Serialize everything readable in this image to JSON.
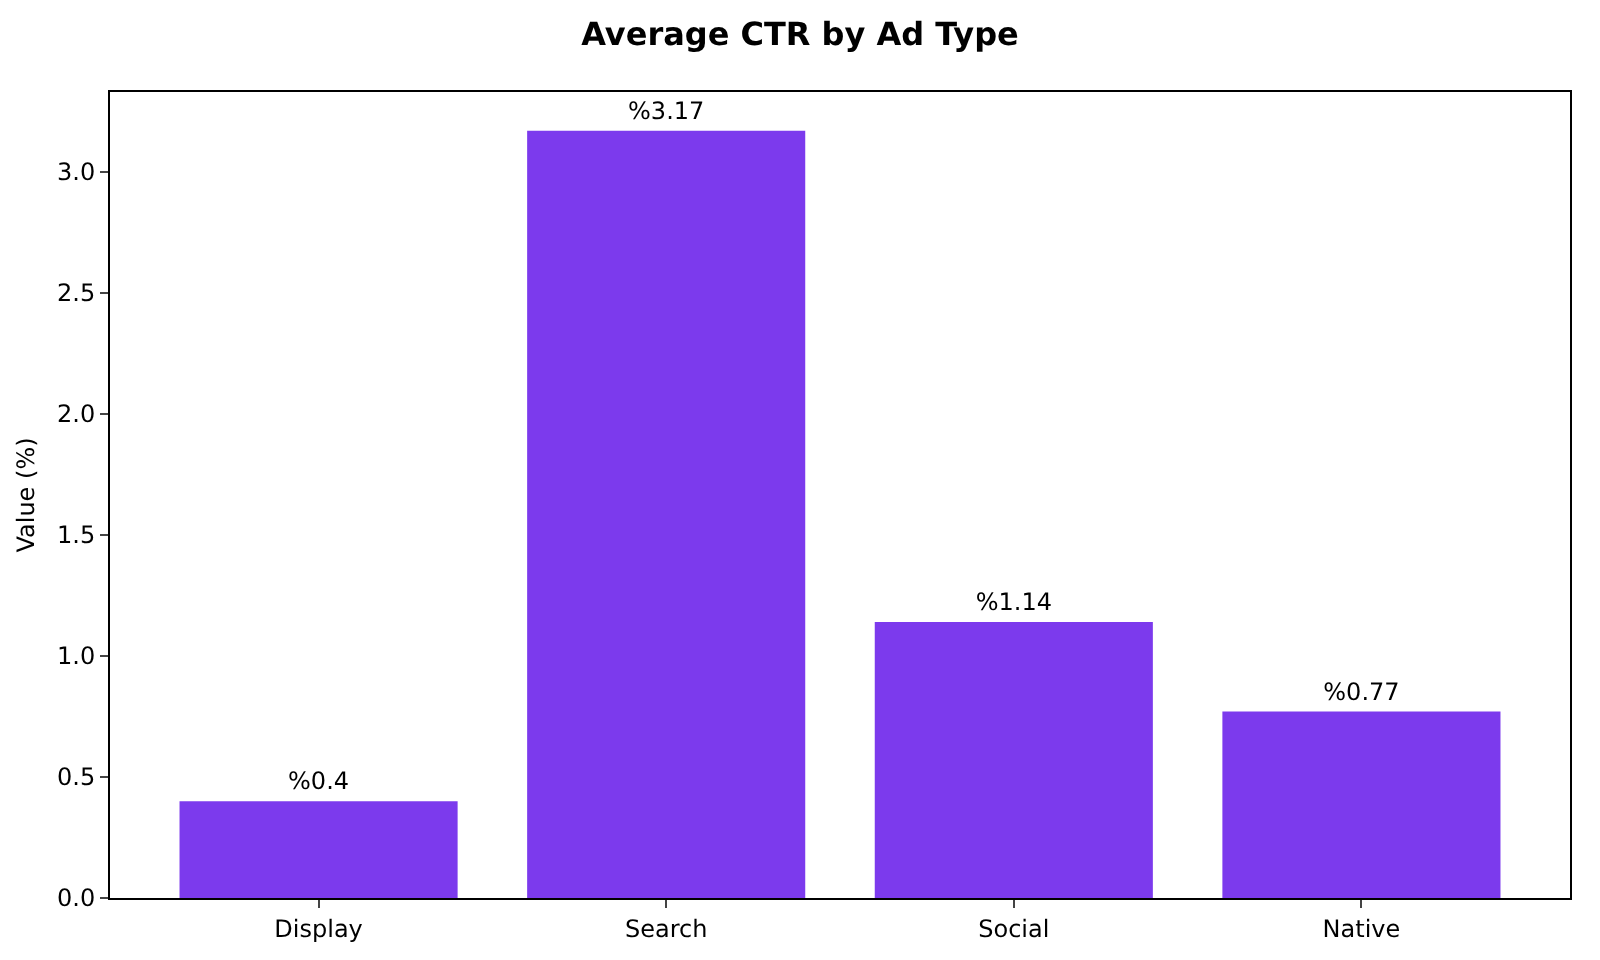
{
  "chart_data": {
    "type": "bar",
    "title": "Average CTR by Ad Type",
    "ylabel": "Value (%)",
    "categories": [
      "Display",
      "Search",
      "Social",
      "Native"
    ],
    "values": [
      0.4,
      3.17,
      1.14,
      0.77
    ],
    "value_labels": [
      "%0.4",
      "%3.17",
      "%1.14",
      "%0.77"
    ],
    "color": "#7c3aed",
    "ylim": [
      0,
      3.33
    ],
    "yticks": [
      {
        "value": 0,
        "label": "0.0"
      },
      0.5,
      {
        "value": 1,
        "label": "1.0"
      },
      1.5,
      {
        "value": 2,
        "label": "2.0"
      },
      2.5,
      {
        "value": 3,
        "label": "3.0"
      }
    ],
    "grid": false
  }
}
